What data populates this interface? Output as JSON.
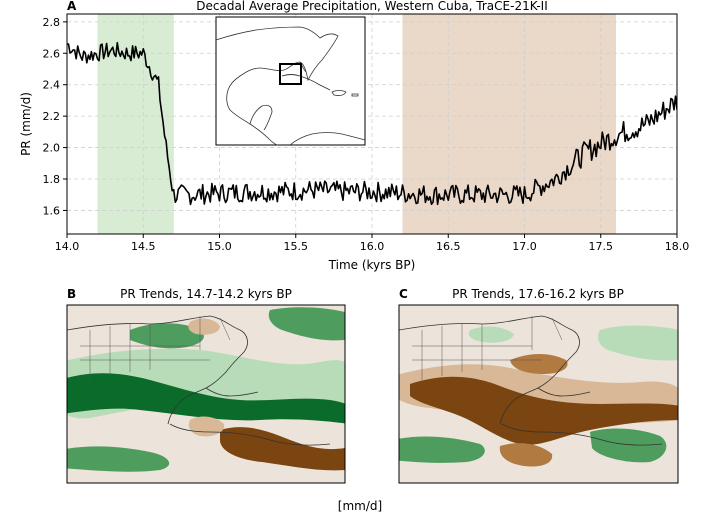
{
  "colors": {
    "wet_shade": "#d7ecd3",
    "dry_shade": "#ead8c8",
    "line": "#000000",
    "grid": "#cfcfcf",
    "map_land_line": "#333333",
    "green_dark": "#0b6b2a",
    "green_mid": "#4f9d5e",
    "green_light": "#b9dcb8",
    "neutral": "#ece4da",
    "brown_light": "#d8b896",
    "brown_mid": "#b07a40",
    "brown_dark": "#7a4510"
  },
  "chart_data": [
    {
      "panel": "A",
      "type": "line",
      "title": "Decadal Average Precipitation, Western Cuba, TraCE-21K-II",
      "xlabel": "Time (kyrs BP)",
      "ylabel": "PR (mm/d)",
      "xlim": [
        14.0,
        18.0
      ],
      "ylim": [
        1.45,
        2.85
      ],
      "xticks": [
        14.0,
        14.5,
        15.0,
        15.5,
        16.0,
        16.5,
        17.0,
        17.5,
        18.0
      ],
      "xtick_labels": [
        "14.0",
        "14.5",
        "15.0",
        "15.5",
        "16.0",
        "16.5",
        "17.0",
        "17.5",
        "18.0"
      ],
      "yticks": [
        1.6,
        1.8,
        2.0,
        2.2,
        2.4,
        2.6,
        2.8
      ],
      "ytick_labels": [
        "1.6",
        "1.8",
        "2.0",
        "2.2",
        "2.4",
        "2.6",
        "2.8"
      ],
      "grid": true,
      "shaded_spans": [
        {
          "name": "wet-period",
          "x0": 14.2,
          "x1": 14.7
        },
        {
          "name": "dry-period",
          "x0": 16.2,
          "x1": 17.6
        }
      ],
      "inset": "map of Gulf of Mexico and Caribbean with box over western Cuba",
      "series": [
        {
          "name": "PR",
          "x": [
            14.0,
            14.1,
            14.2,
            14.3,
            14.4,
            14.5,
            14.55,
            14.6,
            14.65,
            14.7,
            14.8,
            15.0,
            15.2,
            15.4,
            15.6,
            15.8,
            16.0,
            16.2,
            16.4,
            16.6,
            16.8,
            17.0,
            17.2,
            17.4,
            17.6,
            17.8,
            18.0
          ],
          "values": [
            2.66,
            2.58,
            2.6,
            2.62,
            2.6,
            2.6,
            2.5,
            2.4,
            2.0,
            1.7,
            1.7,
            1.71,
            1.72,
            1.72,
            1.73,
            1.72,
            1.72,
            1.71,
            1.7,
            1.7,
            1.7,
            1.7,
            1.8,
            1.97,
            2.08,
            2.15,
            2.3
          ]
        }
      ]
    },
    {
      "panel": "B",
      "type": "heatmap",
      "title": "PR Trends, 14.7-14.2 kyrs BP",
      "colorbar_label": "[mm/d]"
    },
    {
      "panel": "C",
      "type": "heatmap",
      "title": "PR Trends, 17.6-16.2 kyrs BP",
      "colorbar_label": "[mm/d]"
    }
  ],
  "labels": {
    "panel_a": "A",
    "panel_b": "B",
    "panel_c": "C",
    "colorbar_unit": "[mm/d]"
  }
}
